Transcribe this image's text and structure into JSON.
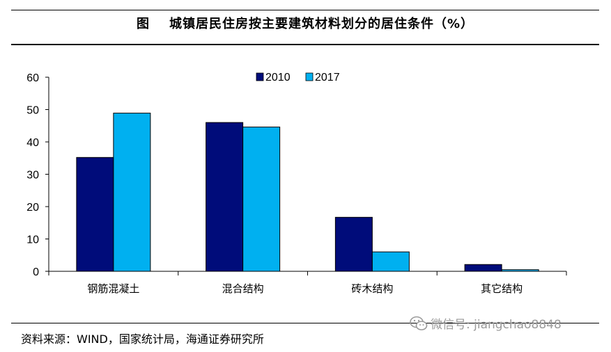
{
  "header": {
    "figure_label": "图",
    "title": "城镇居民住房按主要建筑材料划分的居住条件（%）"
  },
  "chart_data": {
    "type": "bar",
    "title": "城镇居民住房按主要建筑材料划分的居住条件（%）",
    "xlabel": "",
    "ylabel": "",
    "categories": [
      "钢筋混凝土",
      "混合结构",
      "砖木结构",
      "其它结构"
    ],
    "series": [
      {
        "name": "2010",
        "color": "#000c7a",
        "values": [
          35.2,
          46.0,
          16.7,
          2.1
        ]
      },
      {
        "name": "2017",
        "color": "#00b0f0",
        "values": [
          48.9,
          44.6,
          6.0,
          0.5
        ]
      }
    ],
    "ylim": [
      0,
      60
    ],
    "yticks": [
      0,
      10,
      20,
      30,
      40,
      50,
      60
    ],
    "grid": false,
    "legend_position": "top-center"
  },
  "footer": {
    "source": "资料来源：WIND，国家统计局，海通证券研究所",
    "watermark": "微信号: jiangchao8848"
  }
}
